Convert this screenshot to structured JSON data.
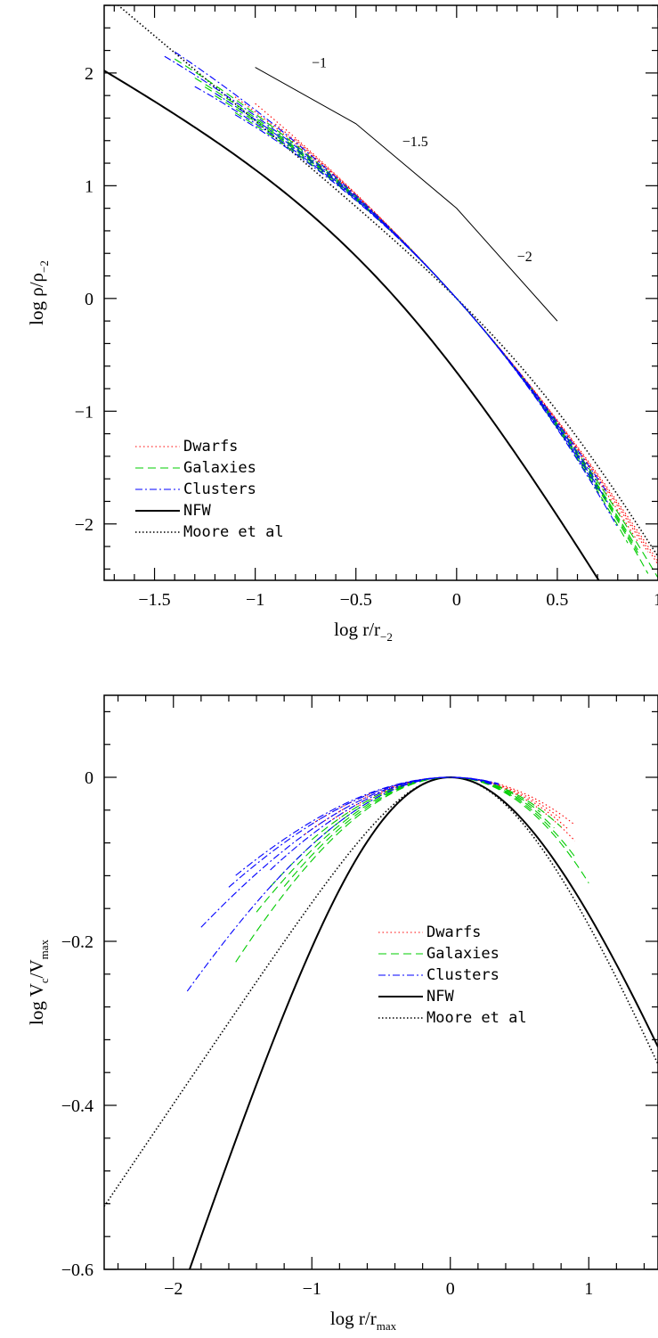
{
  "colors": {
    "dwarfs": "#ff0000",
    "galaxies": "#00cc00",
    "clusters": "#0000ff",
    "nfw": "#000000",
    "moore": "#000000",
    "frame": "#000000"
  },
  "chart_data": [
    {
      "type": "line",
      "panel": "top",
      "xlabel": "log r/r",
      "xlabel_sub": "-2",
      "ylabel": "log ρ/ρ",
      "ylabel_sub": "-2",
      "xlim": [
        -1.75,
        1.0
      ],
      "ylim": [
        -2.5,
        2.6
      ],
      "xticks": [
        {
          "v": -1.5,
          "label": "-1.5"
        },
        {
          "v": -1,
          "label": "-1"
        },
        {
          "v": -0.5,
          "label": "-0.5"
        },
        {
          "v": 0,
          "label": "0"
        },
        {
          "v": 0.5,
          "label": "0.5"
        },
        {
          "v": 1,
          "label": "1"
        }
      ],
      "yticks": [
        {
          "v": 2,
          "label": "2"
        },
        {
          "v": 1,
          "label": "1"
        },
        {
          "v": 0,
          "label": "0"
        },
        {
          "v": -1,
          "label": "-1"
        },
        {
          "v": -2,
          "label": "-2"
        }
      ],
      "legend": {
        "position": "bottom-left",
        "entries": [
          {
            "label": "Dwarfs",
            "style": "dwarfs"
          },
          {
            "label": "Galaxies",
            "style": "galaxies"
          },
          {
            "label": "Clusters",
            "style": "clusters"
          },
          {
            "label": "NFW",
            "style": "nfw"
          },
          {
            "label": "Moore et al",
            "style": "moore"
          }
        ]
      },
      "slope_guide": {
        "points": [
          [
            -1.0,
            2.05
          ],
          [
            -0.5,
            1.55
          ],
          [
            0.0,
            0.8
          ],
          [
            0.5,
            -0.2
          ]
        ],
        "labels": [
          {
            "text": "-1",
            "x": -0.72,
            "y": 2.05
          },
          {
            "text": "-1.5",
            "x": -0.27,
            "y": 1.35
          },
          {
            "text": "-2",
            "x": 0.3,
            "y": 0.33
          }
        ]
      },
      "series": [
        {
          "name": "NFW",
          "style": "nfw",
          "model": "nfw_density",
          "range": [
            -1.75,
            1.0
          ]
        },
        {
          "name": "Moore et al",
          "style": "moore",
          "model": "moore_density",
          "range": [
            -1.75,
            1.0
          ]
        },
        {
          "name": "Dwarfs",
          "style": "dwarfs",
          "model": "einasto_density",
          "params": [
            {
              "alpha": 0.13,
              "range": [
                -1.0,
                1.0
              ]
            },
            {
              "alpha": 0.15,
              "range": [
                -0.9,
                0.95
              ]
            },
            {
              "alpha": 0.17,
              "range": [
                -1.1,
                0.9
              ]
            },
            {
              "alpha": 0.14,
              "range": [
                -0.8,
                1.0
              ]
            }
          ]
        },
        {
          "name": "Galaxies",
          "style": "galaxies",
          "model": "einasto_density",
          "params": [
            {
              "alpha": 0.2,
              "range": [
                -1.3,
                0.9
              ]
            },
            {
              "alpha": 0.22,
              "range": [
                -1.2,
                0.95
              ]
            },
            {
              "alpha": 0.18,
              "range": [
                -1.4,
                1.0
              ]
            },
            {
              "alpha": 0.24,
              "range": [
                -1.1,
                0.85
              ]
            },
            {
              "alpha": 0.21,
              "range": [
                -1.25,
                0.9
              ]
            }
          ]
        },
        {
          "name": "Clusters",
          "style": "clusters",
          "model": "einasto_density",
          "params": [
            {
              "alpha": 0.19,
              "range": [
                -1.45,
                0.7
              ]
            },
            {
              "alpha": 0.16,
              "range": [
                -1.4,
                0.75
              ]
            },
            {
              "alpha": 0.23,
              "range": [
                -1.3,
                0.7
              ]
            },
            {
              "alpha": 0.21,
              "range": [
                -1.2,
                0.75
              ]
            },
            {
              "alpha": 0.25,
              "range": [
                -1.1,
                0.8
              ]
            }
          ]
        }
      ]
    },
    {
      "type": "line",
      "panel": "bottom",
      "xlabel": "log r/r",
      "xlabel_sub": "max",
      "ylabel": "log V",
      "ylabel_sub": "c",
      "ylabel_mid": "/V",
      "ylabel_sub2": "max",
      "xlim": [
        -2.5,
        1.5
      ],
      "ylim": [
        -0.6,
        0.1
      ],
      "xticks": [
        {
          "v": -2,
          "label": "-2"
        },
        {
          "v": -1,
          "label": "-1"
        },
        {
          "v": 0,
          "label": "0"
        },
        {
          "v": 1,
          "label": "1"
        }
      ],
      "yticks": [
        {
          "v": 0,
          "label": "0"
        },
        {
          "v": -0.2,
          "label": "-0.2"
        },
        {
          "v": -0.4,
          "label": "-0.4"
        },
        {
          "v": -0.6,
          "label": "-0.6"
        }
      ],
      "legend": {
        "position": "center-right",
        "entries": [
          {
            "label": "Dwarfs",
            "style": "dwarfs"
          },
          {
            "label": "Galaxies",
            "style": "galaxies"
          },
          {
            "label": "Clusters",
            "style": "clusters"
          },
          {
            "label": "NFW",
            "style": "nfw"
          },
          {
            "label": "Moore et al",
            "style": "moore"
          }
        ]
      },
      "series": [
        {
          "name": "NFW",
          "style": "nfw",
          "model": "nfw_velocity",
          "range": [
            -1.95,
            1.5
          ]
        },
        {
          "name": "Moore et al",
          "style": "moore",
          "model": "moore_velocity",
          "range": [
            -2.5,
            1.5
          ]
        },
        {
          "name": "Dwarfs",
          "style": "dwarfs",
          "model": "einasto_velocity",
          "params": [
            {
              "alpha": 0.18,
              "range": [
                -1.0,
                0.9
              ]
            },
            {
              "alpha": 0.22,
              "range": [
                -0.9,
                0.85
              ]
            },
            {
              "alpha": 0.2,
              "range": [
                -1.05,
                0.8
              ]
            },
            {
              "alpha": 0.24,
              "range": [
                -0.85,
                0.9
              ]
            }
          ]
        },
        {
          "name": "Galaxies",
          "style": "galaxies",
          "model": "einasto_velocity",
          "params": [
            {
              "alpha": 0.32,
              "range": [
                -1.55,
                1.0
              ]
            },
            {
              "alpha": 0.28,
              "range": [
                -1.4,
                0.75
              ]
            },
            {
              "alpha": 0.24,
              "range": [
                -1.0,
                0.8
              ]
            },
            {
              "alpha": 0.3,
              "range": [
                -1.2,
                0.9
              ]
            },
            {
              "alpha": 0.26,
              "range": [
                -1.3,
                0.65
              ]
            }
          ]
        },
        {
          "name": "Clusters",
          "style": "clusters",
          "model": "einasto_velocity",
          "params": [
            {
              "alpha": 0.26,
              "range": [
                -1.9,
                0.3
              ]
            },
            {
              "alpha": 0.2,
              "range": [
                -1.8,
                0.35
              ]
            },
            {
              "alpha": 0.18,
              "range": [
                -1.6,
                0.3
              ]
            },
            {
              "alpha": 0.17,
              "range": [
                -1.55,
                0.35
              ]
            },
            {
              "alpha": 0.22,
              "range": [
                -1.3,
                0.3
              ]
            }
          ]
        }
      ]
    }
  ]
}
